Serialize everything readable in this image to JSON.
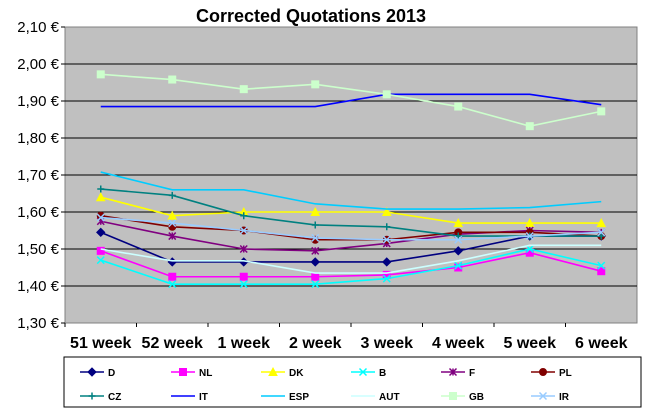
{
  "chart_data": {
    "type": "line",
    "title": "Corrected Quotations 2013",
    "xlabel": "",
    "ylabel": "",
    "categories": [
      "51 week",
      "52 week",
      "1 week",
      "2 week",
      "3 week",
      "4 week",
      "5 week",
      "6 week"
    ],
    "ylim": [
      1.3,
      2.1
    ],
    "yticks": [
      "1,30 €",
      "1,40 €",
      "1,50 €",
      "1,60 €",
      "1,70 €",
      "1,80 €",
      "1,90 €",
      "2,00 €",
      "2,10 €"
    ],
    "ytick_values": [
      1.3,
      1.4,
      1.5,
      1.6,
      1.7,
      1.8,
      1.9,
      2.0,
      2.1
    ],
    "grid": "horizontal",
    "legend_placement": "bottom",
    "plot_background": "#c0c0c0",
    "series": [
      {
        "name": "D",
        "color": "#000080",
        "marker": "diamond",
        "values": [
          1.545,
          1.465,
          1.465,
          1.465,
          1.465,
          1.495,
          1.535,
          1.535
        ]
      },
      {
        "name": "NL",
        "color": "#ff00ff",
        "marker": "square",
        "values": [
          1.495,
          1.425,
          1.425,
          1.425,
          1.43,
          1.45,
          1.49,
          1.44
        ]
      },
      {
        "name": "DK",
        "color": "#ffff00",
        "marker": "triangle",
        "values": [
          1.64,
          1.59,
          1.6,
          1.6,
          1.6,
          1.57,
          1.57,
          1.57
        ]
      },
      {
        "name": "B",
        "color": "#00ffff",
        "marker": "x",
        "values": [
          1.47,
          1.405,
          1.405,
          1.405,
          1.42,
          1.455,
          1.5,
          1.455
        ]
      },
      {
        "name": "F",
        "color": "#800080",
        "marker": "star",
        "values": [
          1.575,
          1.535,
          1.5,
          1.495,
          1.515,
          1.54,
          1.55,
          1.545
        ]
      },
      {
        "name": "PL",
        "color": "#800000",
        "marker": "circle",
        "values": [
          1.59,
          1.56,
          1.55,
          1.525,
          1.525,
          1.545,
          1.545,
          1.535
        ]
      },
      {
        "name": "CZ",
        "color": "#008080",
        "marker": "plus",
        "values": [
          1.662,
          1.645,
          1.59,
          1.565,
          1.56,
          1.535,
          1.535,
          1.535
        ]
      },
      {
        "name": "IT",
        "color": "#0000ff",
        "marker": "none",
        "values": [
          1.885,
          1.885,
          1.885,
          1.885,
          1.918,
          1.918,
          1.918,
          1.89
        ]
      },
      {
        "name": "ESP",
        "color": "#00ccff",
        "marker": "none",
        "values": [
          1.708,
          1.66,
          1.66,
          1.622,
          1.608,
          1.608,
          1.612,
          1.628
        ]
      },
      {
        "name": "AUT",
        "color": "#ccffff",
        "marker": "none",
        "values": [
          1.5,
          1.468,
          1.468,
          1.435,
          1.435,
          1.468,
          1.51,
          1.51
        ]
      },
      {
        "name": "GB",
        "color": "#ccffcc",
        "marker": "square",
        "values": [
          1.972,
          1.958,
          1.932,
          1.945,
          1.918,
          1.885,
          1.832,
          1.872
        ]
      },
      {
        "name": "IR",
        "color": "#99ccff",
        "marker": "x",
        "values": [
          1.585,
          1.57,
          1.55,
          1.53,
          1.525,
          1.525,
          1.535,
          1.545
        ]
      }
    ]
  }
}
